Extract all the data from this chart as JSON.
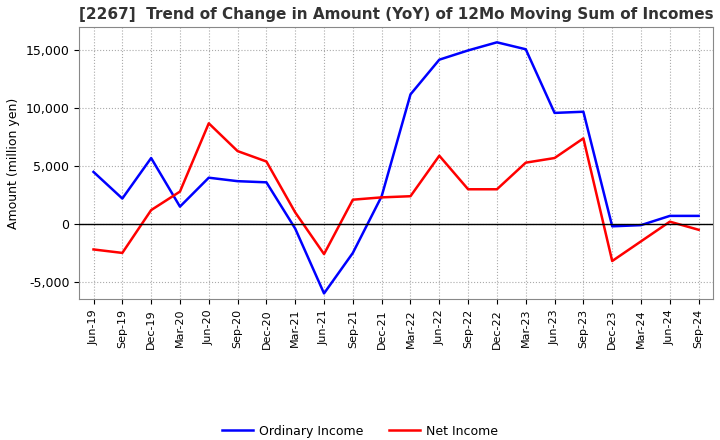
{
  "title": "[2267]  Trend of Change in Amount (YoY) of 12Mo Moving Sum of Incomes",
  "ylabel": "Amount (million yen)",
  "ylim": [
    -6500,
    17000
  ],
  "yticks": [
    -5000,
    0,
    5000,
    10000,
    15000
  ],
  "x_labels": [
    "Jun-19",
    "Sep-19",
    "Dec-19",
    "Mar-20",
    "Jun-20",
    "Sep-20",
    "Dec-20",
    "Mar-21",
    "Jun-21",
    "Sep-21",
    "Dec-21",
    "Mar-22",
    "Jun-22",
    "Sep-22",
    "Dec-22",
    "Mar-23",
    "Jun-23",
    "Sep-23",
    "Dec-23",
    "Mar-24",
    "Jun-24",
    "Sep-24"
  ],
  "ordinary_income": [
    4500,
    2200,
    5700,
    1500,
    4000,
    3700,
    3600,
    -400,
    -6000,
    -2500,
    2400,
    11200,
    14200,
    15000,
    15700,
    15100,
    9600,
    9700,
    -200,
    -100,
    700,
    700
  ],
  "net_income": [
    -2200,
    -2500,
    1200,
    2800,
    8700,
    6300,
    5400,
    1000,
    -2600,
    2100,
    2300,
    2400,
    5900,
    3000,
    3000,
    5300,
    5700,
    7400,
    -3200,
    -1500,
    200,
    -500
  ],
  "ordinary_income_color": "#0000ff",
  "net_income_color": "#ff0000",
  "line_width": 1.8,
  "background_color": "#ffffff",
  "grid_color": "#aaaaaa",
  "legend_ordinary": "Ordinary Income",
  "legend_net": "Net Income",
  "figsize": [
    7.2,
    4.4
  ],
  "dpi": 100
}
